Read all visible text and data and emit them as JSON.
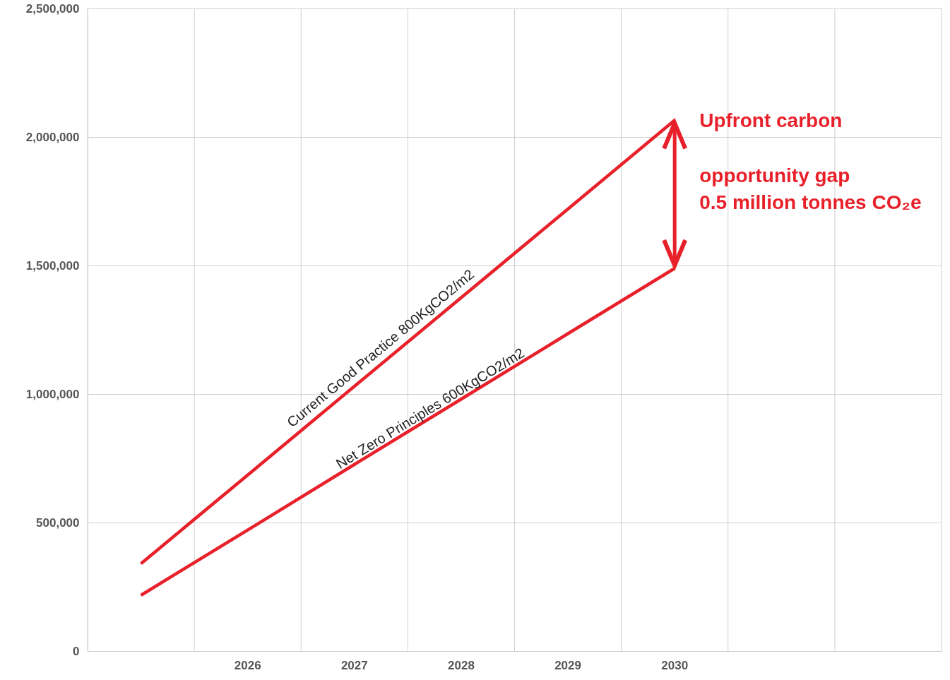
{
  "chart_data": {
    "type": "line",
    "categories": [
      null,
      "2026",
      "2027",
      "2028",
      "2029",
      "2030",
      null,
      null
    ],
    "series": [
      {
        "name": "Current Good Practice 800KgCO2/m2",
        "color": "#e8202a",
        "values": [
          340000,
          685000,
          1030000,
          1375000,
          1720000,
          2065000,
          null,
          null
        ]
      },
      {
        "name": "Net Zero Principles 600KgCO2/m2",
        "color": "#e8202a",
        "values": [
          217000,
          471000,
          726000,
          980000,
          1235000,
          1489000,
          null,
          null
        ]
      }
    ],
    "ylim": [
      0,
      2500000
    ],
    "yticks": [
      0,
      {
        "value": 500000,
        "label": "500,000"
      },
      {
        "value": 1000000,
        "label": "1,000,000"
      },
      {
        "value": 1500000,
        "label": "1,500,000"
      },
      {
        "value": 2000000,
        "label": "2,000,000"
      },
      {
        "value": 2500000,
        "label": "2,500,000"
      }
    ],
    "grid": true,
    "marker": "none",
    "line_style": "solid",
    "annotations": [
      {
        "text": "Upfront carbon",
        "x": "2030",
        "y": 2065000
      },
      "opportunity gap",
      "0.5 million tonnes CO₂e"
    ]
  }
}
